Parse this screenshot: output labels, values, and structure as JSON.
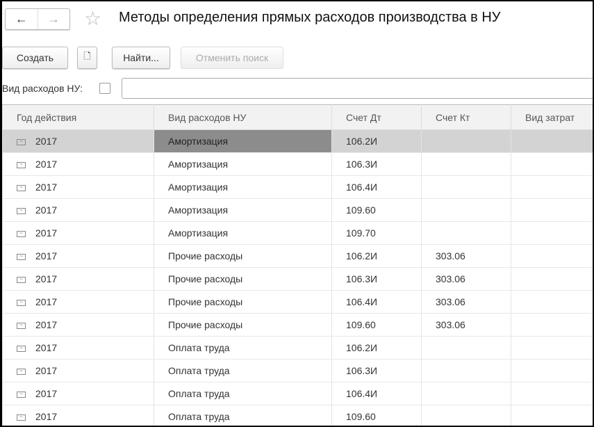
{
  "header": {
    "title": "Методы определения прямых расходов производства в НУ",
    "back_icon": "←",
    "forward_icon": "→",
    "star_icon": "☆"
  },
  "toolbar": {
    "create": "Создать",
    "copy_icon": "document-add-icon",
    "find": "Найти...",
    "cancel_search": "Отменить поиск"
  },
  "filter": {
    "label": "Вид расходов НУ:",
    "value": ""
  },
  "table": {
    "columns": [
      "Год действия",
      "Вид расходов НУ",
      "Счет Дт",
      "Счет Кт",
      "Вид затрат"
    ],
    "rows": [
      [
        "2017",
        "Амортизация",
        "106.2И",
        "",
        ""
      ],
      [
        "2017",
        "Амортизация",
        "106.3И",
        "",
        ""
      ],
      [
        "2017",
        "Амортизация",
        "106.4И",
        "",
        ""
      ],
      [
        "2017",
        "Амортизация",
        "109.60",
        "",
        ""
      ],
      [
        "2017",
        "Амортизация",
        "109.70",
        "",
        ""
      ],
      [
        "2017",
        "Прочие расходы",
        "106.2И",
        "303.06",
        ""
      ],
      [
        "2017",
        "Прочие расходы",
        "106.3И",
        "303.06",
        ""
      ],
      [
        "2017",
        "Прочие расходы",
        "106.4И",
        "303.06",
        ""
      ],
      [
        "2017",
        "Прочие расходы",
        "109.60",
        "303.06",
        ""
      ],
      [
        "2017",
        "Оплата труда",
        "106.2И",
        "",
        ""
      ],
      [
        "2017",
        "Оплата труда",
        "106.3И",
        "",
        ""
      ],
      [
        "2017",
        "Оплата труда",
        "106.4И",
        "",
        ""
      ],
      [
        "2017",
        "Оплата труда",
        "109.60",
        "",
        ""
      ]
    ]
  }
}
